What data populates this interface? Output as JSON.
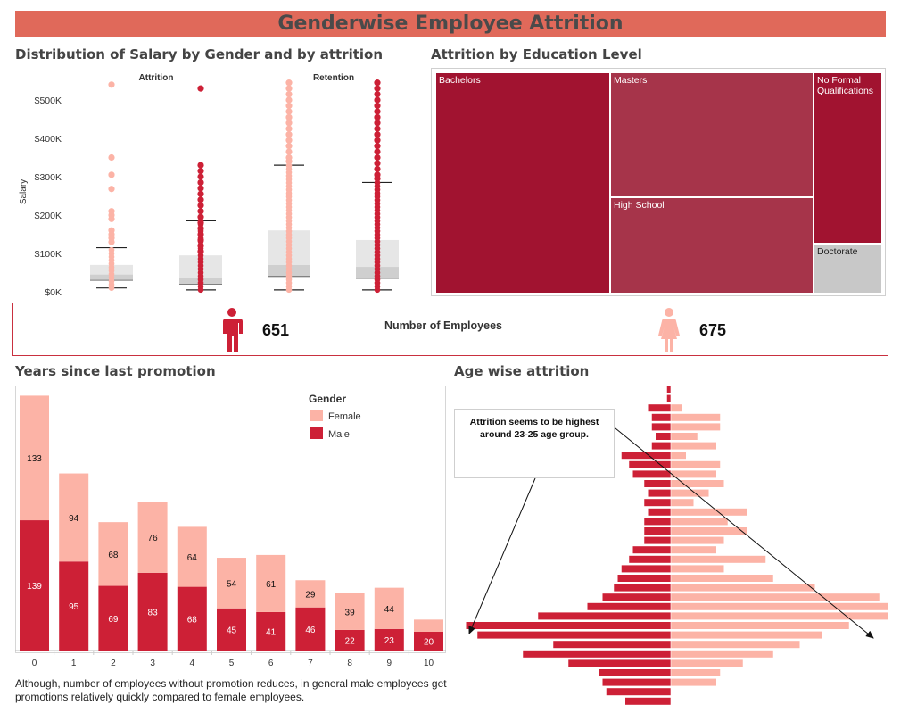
{
  "dashboard": {
    "title": "Genderwise Employee Attrition",
    "colors": {
      "banner": "#e0695a",
      "male": "#cd2036",
      "female": "#fcb3a6",
      "treemap_dark": "#a11330",
      "treemap_mid": "#a6344a",
      "treemap_grey": "#c8c8c8"
    }
  },
  "salary_section": {
    "title": "Distribution of Salary by Gender and by attrition"
  },
  "education_section": {
    "title": "Attrition by Education Level"
  },
  "kpi": {
    "label": "Number of Employees",
    "male_count": "651",
    "female_count": "675",
    "male_icon": "male-person-icon",
    "female_icon": "female-person-icon"
  },
  "promotion_section": {
    "title": "Years since last promotion",
    "footnote": "Although, number of employees without promotion reduces, in general male employees get promotions relatively quickly compared to female employees."
  },
  "age_section": {
    "title": "Age wise attrition",
    "annotation": "Attrition seems to be highest around 23-25 age group."
  },
  "chart_data": [
    {
      "type": "box",
      "title": "Distribution of Salary by Gender and by attrition",
      "ylabel": "Salary",
      "yticks": [
        "$0K",
        "$100K",
        "$200K",
        "$300K",
        "$400K",
        "$500K"
      ],
      "ylim": [
        0,
        550000
      ],
      "panels": [
        "Attrition",
        "Retention"
      ],
      "series": [
        {
          "panel": "Attrition",
          "gender": "Female",
          "min": 10000,
          "q1": 30000,
          "median": 45000,
          "q3": 70000,
          "whisker_high": 115000,
          "outliers": [
            540000,
            350000,
            305000,
            268000,
            210000,
            200000,
            190000,
            160000,
            150000,
            140000,
            130000
          ]
        },
        {
          "panel": "Attrition",
          "gender": "Male",
          "min": 5000,
          "q1": 20000,
          "median": 35000,
          "q3": 95000,
          "whisker_high": 185000,
          "outliers": [
            530000,
            330000,
            315000,
            300000,
            285000,
            270000,
            255000,
            240000,
            225000,
            210000,
            195000,
            180000,
            165000,
            150000,
            135000,
            120000,
            105000
          ]
        },
        {
          "panel": "Retention",
          "gender": "Female",
          "min": 5000,
          "q1": 40000,
          "median": 70000,
          "q3": 160000,
          "whisker_high": 330000,
          "outliers": [
            545000,
            530000,
            515000,
            500000,
            485000,
            470000,
            455000,
            440000,
            425000,
            410000,
            395000,
            380000,
            365000,
            350000,
            340000
          ]
        },
        {
          "panel": "Retention",
          "gender": "Male",
          "min": 5000,
          "q1": 35000,
          "median": 65000,
          "q3": 135000,
          "whisker_high": 285000,
          "outliers": [
            545000,
            530000,
            515000,
            500000,
            485000,
            470000,
            455000,
            440000,
            425000,
            410000,
            395000,
            380000,
            365000,
            350000,
            335000,
            320000,
            305000,
            295000
          ]
        }
      ]
    },
    {
      "type": "treemap",
      "title": "Attrition by Education Level",
      "items": [
        {
          "label": "Bachelors",
          "share": 0.424
        },
        {
          "label": "Masters",
          "share": 0.218
        },
        {
          "label": "High School",
          "share": 0.201
        },
        {
          "label": "No Formal Qualifications",
          "share": 0.116
        },
        {
          "label": "Doctorate",
          "share": 0.041
        }
      ]
    },
    {
      "type": "bar",
      "stacked": true,
      "title": "Years since last promotion",
      "legend_title": "Gender",
      "legend_position": "top-right",
      "categories": [
        "0",
        "1",
        "2",
        "3",
        "4",
        "5",
        "6",
        "7",
        "8",
        "9",
        "10"
      ],
      "series": [
        {
          "name": "Male",
          "values": [
            139,
            95,
            69,
            83,
            68,
            45,
            41,
            46,
            22,
            23,
            20
          ]
        },
        {
          "name": "Female",
          "values": [
            133,
            94,
            68,
            76,
            64,
            54,
            61,
            29,
            39,
            44,
            13
          ]
        }
      ],
      "labels_female": [
        "133",
        "94",
        "68",
        "76",
        "64",
        "54",
        "61",
        "29",
        "39",
        "44",
        ""
      ]
    },
    {
      "type": "bar",
      "orientation": "horizontal",
      "title": "Age wise attrition",
      "male": [
        1,
        1,
        6,
        5,
        5,
        4,
        5,
        13,
        11,
        10,
        7,
        6,
        7,
        6,
        7,
        7,
        7,
        10,
        11,
        13,
        14,
        15,
        18,
        22,
        35,
        54,
        51,
        31,
        39,
        27,
        19,
        18,
        17,
        12
      ],
      "female": [
        0,
        3,
        13,
        13,
        7,
        12,
        4,
        13,
        12,
        14,
        10,
        6,
        20,
        15,
        20,
        14,
        12,
        25,
        14,
        27,
        38,
        55,
        60,
        61,
        47,
        40,
        34,
        27,
        19,
        13,
        12
      ]
    }
  ]
}
